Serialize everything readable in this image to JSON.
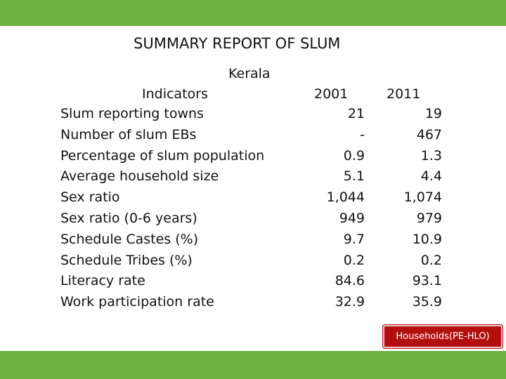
{
  "title": "SUMMARY REPORT OF SLUM",
  "region": "Kerala",
  "headers": {
    "indicators": "Indicators",
    "year1": "2001",
    "year2": "2011"
  },
  "rows": [
    {
      "label": "Slum reporting towns",
      "v2001": "21",
      "v2011": "19"
    },
    {
      "label": "Number of slum EBs",
      "v2001": "-",
      "v2011": "467"
    },
    {
      "label": "Percentage of slum population",
      "v2001": "0.9",
      "v2011": "1.3"
    },
    {
      "label": "Average household size",
      "v2001": "5.1",
      "v2011": "4.4"
    },
    {
      "label": "Sex ratio",
      "v2001": "1,044",
      "v2011": "1,074"
    },
    {
      "label": "Sex ratio (0-6 years)",
      "v2001": "949",
      "v2011": "979"
    },
    {
      "label": "Schedule Castes (%)",
      "v2001": "9.7",
      "v2011": "10.9"
    },
    {
      "label": "Schedule Tribes (%)",
      "v2001": "0.2",
      "v2011": "0.2"
    },
    {
      "label": "Literacy rate",
      "v2001": "84.6",
      "v2011": "93.1"
    },
    {
      "label": "Work participation rate",
      "v2001": "32.9",
      "v2011": "35.9"
    }
  ],
  "footer_button": "Households(PE-HLO)",
  "colors": {
    "bar_green": "#6fb043",
    "button_red": "#b40f0f"
  }
}
